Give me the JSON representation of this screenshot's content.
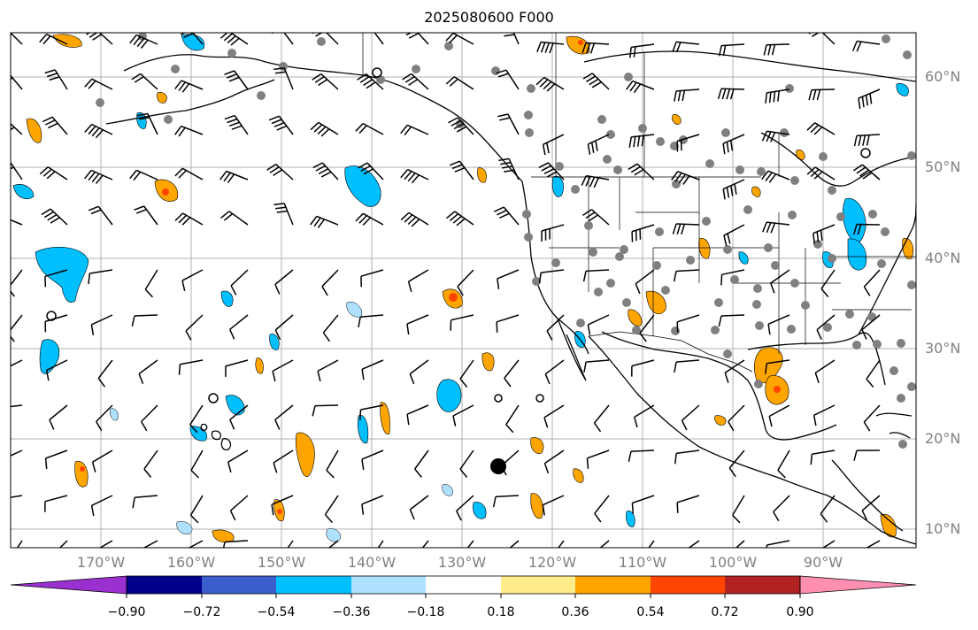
{
  "title": "2025080600 F000",
  "lat_labels": [
    "60°N",
    "50°N",
    "40°N",
    "30°N",
    "20°N",
    "10°N"
  ],
  "lon_labels": [
    "170°W",
    "160°W",
    "150°W",
    "140°W",
    "130°W",
    "120°W",
    "110°W",
    "100°W",
    "90°W"
  ],
  "colorbar": {
    "ticks": [
      "−0.90",
      "−0.72",
      "−0.54",
      "−0.36",
      "−0.18",
      "0.18",
      "0.36",
      "0.54",
      "0.72",
      "0.90"
    ],
    "colors": [
      "#9b30d0",
      "#00008b",
      "#3a5fcd",
      "#00bfff",
      "#aee0ff",
      "#ffffff",
      "#ffec8b",
      "#ffa500",
      "#ff4500",
      "#b22222",
      "#ff8fb0"
    ]
  },
  "map": {
    "lon_range": [
      -180,
      -80
    ],
    "lat_range": [
      7,
      64
    ],
    "grid": true,
    "field_colors": {
      "neg": "#00bfff",
      "neg_light": "#aee0ff",
      "pos": "#ffa500",
      "pos_high": "#ff4500"
    },
    "station_color": "#808080"
  }
}
